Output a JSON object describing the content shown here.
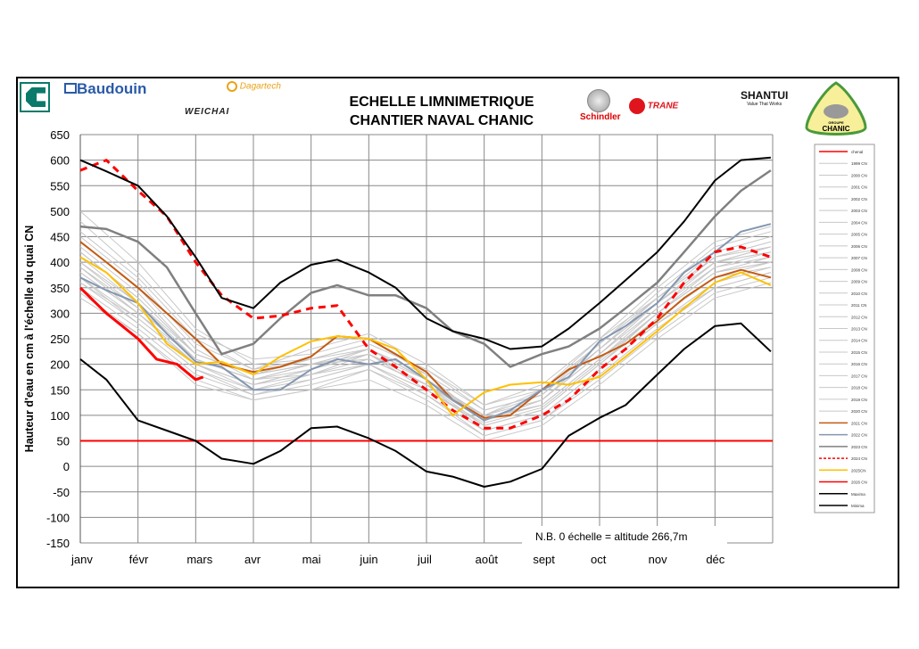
{
  "header": {
    "title_line1": "ECHELLE  LIMNIMETRIQUE",
    "title_line2": "CHANTIER NAVAL CHANIC",
    "logos": [
      "Baudouin",
      "Dagartech",
      "WEICHAI",
      "Schindler",
      "TRANE",
      "SHANTUI",
      "Value That Works",
      "GROUPE",
      "CHANIC"
    ]
  },
  "colors": {
    "chenal": "#ff0000",
    "gray_years": "#c8c8c8",
    "y2021": "#c55a11",
    "y2022": "#8497b0",
    "y2023": "#808080",
    "y2024": "#ff0000",
    "y2025": "#ffc000",
    "y2026": "#ff0000",
    "maxima": "#000000",
    "minima": "#000000"
  },
  "chart_data": {
    "type": "line",
    "title": "ECHELLE  LIMNIMETRIQUE CHANTIER NAVAL CHANIC",
    "ylabel": "Hauteur d'eau en cm à l'échelle du quai CN",
    "xlabel": "",
    "ylim": [
      -150,
      650
    ],
    "yticks": [
      650,
      600,
      550,
      500,
      450,
      400,
      350,
      300,
      250,
      200,
      150,
      100,
      50,
      0,
      -50,
      -100,
      -150
    ],
    "xticks": [
      "janv",
      "févr",
      "mars",
      "avr",
      "mai",
      "juin",
      "juil",
      "août",
      "sept",
      "oct",
      "nov",
      "déc"
    ],
    "grid": true,
    "legend_placement": "right",
    "note": "N.B.  0 échelle = altitude 266,7m",
    "chenal": {
      "name": "chenal",
      "value": 50
    },
    "gray_x": [
      "01-01",
      "02-01",
      "03-01",
      "04-01",
      "05-01",
      "06-01",
      "07-01",
      "08-01",
      "09-01",
      "10-01",
      "11-01",
      "12-01",
      "12-31"
    ],
    "gray_series": [
      {
        "name": "1999 CN",
        "values": [
          420,
          330,
          220,
          180,
          200,
          230,
          170,
          95,
          120,
          210,
          300,
          390,
          420
        ]
      },
      {
        "name": "2000 CN",
        "values": [
          380,
          300,
          200,
          160,
          190,
          220,
          150,
          80,
          110,
          200,
          290,
          370,
          400
        ]
      },
      {
        "name": "2001 CN",
        "values": [
          500,
          400,
          270,
          200,
          210,
          240,
          190,
          110,
          140,
          240,
          340,
          430,
          460
        ]
      },
      {
        "name": "2002 CN",
        "values": [
          350,
          270,
          180,
          140,
          170,
          200,
          140,
          70,
          100,
          190,
          280,
          360,
          390
        ]
      },
      {
        "name": "2003 CN",
        "values": [
          460,
          370,
          250,
          190,
          230,
          260,
          200,
          120,
          150,
          250,
          330,
          420,
          450
        ]
      },
      {
        "name": "2004 CN",
        "values": [
          330,
          260,
          170,
          130,
          150,
          190,
          140,
          60,
          90,
          170,
          260,
          340,
          370
        ]
      },
      {
        "name": "2005 CN",
        "values": [
          400,
          320,
          210,
          170,
          200,
          210,
          160,
          100,
          130,
          220,
          320,
          400,
          430
        ]
      },
      {
        "name": "2006 CN",
        "values": [
          370,
          280,
          190,
          150,
          180,
          200,
          150,
          85,
          115,
          205,
          300,
          380,
          410
        ]
      },
      {
        "name": "2007 CN",
        "values": [
          480,
          380,
          260,
          210,
          220,
          250,
          180,
          90,
          130,
          230,
          330,
          410,
          440
        ]
      },
      {
        "name": "2008 CN",
        "values": [
          360,
          290,
          200,
          160,
          190,
          230,
          170,
          100,
          150,
          240,
          330,
          410,
          430
        ]
      },
      {
        "name": "2009 CN",
        "values": [
          440,
          350,
          230,
          170,
          200,
          210,
          160,
          95,
          120,
          210,
          310,
          400,
          420
        ]
      },
      {
        "name": "2010 CN",
        "values": [
          390,
          310,
          210,
          170,
          180,
          220,
          160,
          70,
          100,
          190,
          280,
          350,
          380
        ]
      },
      {
        "name": "2011 CN",
        "values": [
          340,
          260,
          160,
          130,
          150,
          170,
          120,
          50,
          80,
          160,
          250,
          330,
          360
        ]
      },
      {
        "name": "2012 CN",
        "values": [
          410,
          320,
          220,
          180,
          210,
          230,
          180,
          110,
          140,
          230,
          320,
          400,
          420
        ]
      },
      {
        "name": "2013 CN",
        "values": [
          450,
          360,
          240,
          190,
          210,
          240,
          190,
          120,
          160,
          250,
          350,
          440,
          470
        ]
      },
      {
        "name": "2014 CN",
        "values": [
          380,
          300,
          210,
          170,
          200,
          230,
          170,
          90,
          130,
          220,
          310,
          390,
          410
        ]
      },
      {
        "name": "2015 CN",
        "values": [
          370,
          290,
          200,
          150,
          170,
          200,
          150,
          80,
          110,
          200,
          300,
          380,
          400
        ]
      },
      {
        "name": "2016 CN",
        "values": [
          430,
          340,
          220,
          180,
          200,
          220,
          160,
          90,
          130,
          220,
          320,
          400,
          430
        ]
      },
      {
        "name": "2017 CN",
        "values": [
          360,
          280,
          190,
          140,
          160,
          190,
          130,
          60,
          90,
          180,
          270,
          350,
          380
        ]
      },
      {
        "name": "2018 CN",
        "values": [
          400,
          310,
          210,
          170,
          190,
          220,
          170,
          100,
          140,
          230,
          320,
          410,
          440
        ]
      },
      {
        "name": "2019 CN",
        "values": [
          420,
          330,
          220,
          180,
          200,
          230,
          170,
          90,
          120,
          210,
          300,
          380,
          400
        ]
      },
      {
        "name": "2020 CN",
        "values": [
          390,
          300,
          200,
          160,
          180,
          210,
          160,
          80,
          110,
          200,
          290,
          370,
          390
        ]
      }
    ],
    "x": [
      "01-01",
      "01-15",
      "02-01",
      "02-15",
      "03-01",
      "03-15",
      "04-01",
      "04-15",
      "05-01",
      "05-15",
      "06-01",
      "06-15",
      "07-01",
      "07-15",
      "08-01",
      "08-15",
      "09-01",
      "09-15",
      "10-01",
      "10-15",
      "11-01",
      "11-15",
      "12-01",
      "12-15",
      "12-31"
    ],
    "series": [
      {
        "name": "2021 CN",
        "values": [
          440,
          400,
          350,
          300,
          250,
          200,
          185,
          195,
          215,
          255,
          250,
          220,
          185,
          130,
          95,
          100,
          150,
          190,
          215,
          240,
          285,
          330,
          370,
          385,
          370
        ]
      },
      {
        "name": "2022 CN",
        "values": [
          370,
          345,
          320,
          260,
          205,
          195,
          150,
          150,
          190,
          210,
          200,
          210,
          170,
          130,
          90,
          110,
          150,
          175,
          245,
          275,
          320,
          380,
          420,
          460,
          475
        ]
      },
      {
        "name": "2023 CN",
        "values": [
          470,
          465,
          440,
          390,
          300,
          220,
          240,
          290,
          340,
          355,
          335,
          335,
          310,
          265,
          240,
          195,
          220,
          235,
          270,
          310,
          360,
          420,
          490,
          540,
          580
        ]
      },
      {
        "name": "2024 CN",
        "values": [
          580,
          600,
          540,
          490,
          400,
          335,
          290,
          295,
          310,
          315,
          230,
          195,
          150,
          110,
          75,
          75,
          100,
          130,
          190,
          230,
          290,
          360,
          420,
          430,
          410
        ]
      },
      {
        "name": "2025CN",
        "values": [
          410,
          380,
          320,
          240,
          200,
          205,
          180,
          215,
          245,
          255,
          250,
          230,
          170,
          100,
          145,
          160,
          165,
          160,
          175,
          215,
          265,
          310,
          360,
          380,
          355
        ]
      },
      {
        "name": "Maxima",
        "values": [
          600,
          578,
          550,
          490,
          410,
          330,
          310,
          360,
          395,
          405,
          380,
          350,
          290,
          265,
          250,
          230,
          235,
          270,
          320,
          365,
          420,
          480,
          560,
          600,
          605
        ]
      },
      {
        "name": "Minima",
        "values": [
          210,
          170,
          90,
          70,
          50,
          15,
          5,
          30,
          75,
          78,
          55,
          30,
          -10,
          -20,
          -40,
          -30,
          -5,
          60,
          95,
          120,
          180,
          230,
          275,
          280,
          225
        ]
      }
    ],
    "current": {
      "name": "2026 CN",
      "x": [
        "01-01",
        "01-15",
        "02-01",
        "02-10",
        "02-20",
        "03-01",
        "03-05"
      ],
      "values": [
        350,
        300,
        250,
        210,
        200,
        170,
        175
      ]
    }
  }
}
